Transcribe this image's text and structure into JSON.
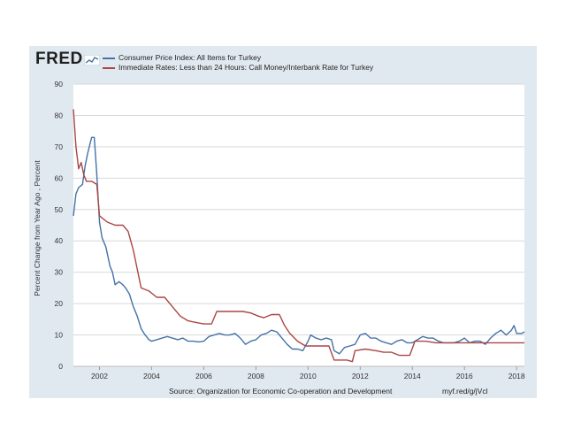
{
  "brand": {
    "logo_text": "FRED",
    "logo_icon": "fred-chart-icon"
  },
  "legend": [
    {
      "label": "Consumer Price Index: All Items for Turkey",
      "color": "#4572a7"
    },
    {
      "label": "Immediate Rates: Less than 24 Hours: Call Money/Interbank Rate for Turkey",
      "color": "#aa4643"
    }
  ],
  "footer": {
    "source": "Source: Organization for Economic Co-operation and Development",
    "url": "myf.red/g/jVcl"
  },
  "colors": {
    "panel": "#e1e9f0",
    "plot": "#ffffff",
    "grid": "#d9d9d9"
  },
  "chart_data": {
    "type": "line",
    "ylabel": "Percent Change from Year Ago , Percent",
    "xlabel": "",
    "xlim": [
      2001.0,
      2018.3
    ],
    "ylim": [
      0,
      90
    ],
    "x_ticks": [
      2002,
      2004,
      2006,
      2008,
      2010,
      2012,
      2014,
      2016,
      2018
    ],
    "y_ticks": [
      0,
      10,
      20,
      30,
      40,
      50,
      60,
      70,
      80,
      90
    ],
    "grid": "horizontal",
    "legend_position": "top-left",
    "series": [
      {
        "name": "Consumer Price Index: All Items for Turkey",
        "color": "#4572a7",
        "points": [
          [
            2001.0,
            48
          ],
          [
            2001.1,
            55
          ],
          [
            2001.2,
            57
          ],
          [
            2001.35,
            58
          ],
          [
            2001.45,
            64
          ],
          [
            2001.55,
            68
          ],
          [
            2001.7,
            73
          ],
          [
            2001.8,
            73
          ],
          [
            2001.9,
            61
          ],
          [
            2002.0,
            46
          ],
          [
            2002.1,
            41
          ],
          [
            2002.25,
            38
          ],
          [
            2002.4,
            32
          ],
          [
            2002.5,
            30
          ],
          [
            2002.6,
            26
          ],
          [
            2002.75,
            27
          ],
          [
            2002.9,
            26
          ],
          [
            2003.0,
            25
          ],
          [
            2003.15,
            23
          ],
          [
            2003.3,
            19
          ],
          [
            2003.45,
            16
          ],
          [
            2003.6,
            12
          ],
          [
            2003.75,
            10
          ],
          [
            2003.9,
            8.5
          ],
          [
            2004.0,
            8
          ],
          [
            2004.2,
            8.5
          ],
          [
            2004.4,
            9
          ],
          [
            2004.6,
            9.5
          ],
          [
            2004.8,
            9
          ],
          [
            2005.0,
            8.5
          ],
          [
            2005.2,
            9
          ],
          [
            2005.4,
            8
          ],
          [
            2005.6,
            8
          ],
          [
            2005.8,
            7.8
          ],
          [
            2006.0,
            8
          ],
          [
            2006.2,
            9.5
          ],
          [
            2006.4,
            10
          ],
          [
            2006.6,
            10.5
          ],
          [
            2006.8,
            10
          ],
          [
            2007.0,
            10
          ],
          [
            2007.2,
            10.5
          ],
          [
            2007.4,
            9
          ],
          [
            2007.6,
            7
          ],
          [
            2007.8,
            8
          ],
          [
            2008.0,
            8.5
          ],
          [
            2008.2,
            10
          ],
          [
            2008.4,
            10.5
          ],
          [
            2008.6,
            11.5
          ],
          [
            2008.8,
            11
          ],
          [
            2009.0,
            9
          ],
          [
            2009.2,
            7
          ],
          [
            2009.4,
            5.5
          ],
          [
            2009.6,
            5.5
          ],
          [
            2009.8,
            5
          ],
          [
            2010.0,
            8
          ],
          [
            2010.1,
            10
          ],
          [
            2010.3,
            9
          ],
          [
            2010.5,
            8.5
          ],
          [
            2010.7,
            9
          ],
          [
            2010.9,
            8.5
          ],
          [
            2011.0,
            5
          ],
          [
            2011.2,
            4
          ],
          [
            2011.4,
            6
          ],
          [
            2011.6,
            6.5
          ],
          [
            2011.8,
            7
          ],
          [
            2012.0,
            10
          ],
          [
            2012.2,
            10.5
          ],
          [
            2012.4,
            9
          ],
          [
            2012.6,
            9
          ],
          [
            2012.8,
            8
          ],
          [
            2013.0,
            7.5
          ],
          [
            2013.2,
            7
          ],
          [
            2013.4,
            8
          ],
          [
            2013.6,
            8.5
          ],
          [
            2013.8,
            7.5
          ],
          [
            2014.0,
            7.5
          ],
          [
            2014.2,
            8.5
          ],
          [
            2014.4,
            9.5
          ],
          [
            2014.6,
            9
          ],
          [
            2014.8,
            9
          ],
          [
            2015.0,
            8
          ],
          [
            2015.2,
            7.5
          ],
          [
            2015.4,
            7.5
          ],
          [
            2015.6,
            7.5
          ],
          [
            2015.8,
            8
          ],
          [
            2016.0,
            9
          ],
          [
            2016.2,
            7.5
          ],
          [
            2016.4,
            8
          ],
          [
            2016.6,
            8
          ],
          [
            2016.8,
            7
          ],
          [
            2017.0,
            9
          ],
          [
            2017.2,
            10.5
          ],
          [
            2017.4,
            11.5
          ],
          [
            2017.6,
            10
          ],
          [
            2017.8,
            11.5
          ],
          [
            2017.9,
            13
          ],
          [
            2018.0,
            10.5
          ],
          [
            2018.2,
            10.5
          ],
          [
            2018.3,
            11
          ]
        ]
      },
      {
        "name": "Immediate Rates: Less than 24 Hours: Call Money/Interbank Rate for Turkey",
        "color": "#aa4643",
        "points": [
          [
            2001.0,
            82
          ],
          [
            2001.1,
            70
          ],
          [
            2001.2,
            63
          ],
          [
            2001.3,
            65
          ],
          [
            2001.4,
            61
          ],
          [
            2001.5,
            59
          ],
          [
            2001.7,
            59
          ],
          [
            2001.9,
            58
          ],
          [
            2002.0,
            48
          ],
          [
            2002.3,
            46
          ],
          [
            2002.6,
            45
          ],
          [
            2002.9,
            45
          ],
          [
            2003.1,
            43
          ],
          [
            2003.3,
            37
          ],
          [
            2003.6,
            25
          ],
          [
            2003.9,
            24
          ],
          [
            2004.2,
            22
          ],
          [
            2004.5,
            22
          ],
          [
            2004.8,
            19
          ],
          [
            2005.1,
            16
          ],
          [
            2005.4,
            14.5
          ],
          [
            2005.7,
            14
          ],
          [
            2006.0,
            13.5
          ],
          [
            2006.3,
            13.5
          ],
          [
            2006.5,
            17.5
          ],
          [
            2006.8,
            17.5
          ],
          [
            2007.2,
            17.5
          ],
          [
            2007.5,
            17.5
          ],
          [
            2007.8,
            17
          ],
          [
            2008.1,
            16
          ],
          [
            2008.3,
            15.5
          ],
          [
            2008.6,
            16.5
          ],
          [
            2008.9,
            16.5
          ],
          [
            2009.1,
            13
          ],
          [
            2009.3,
            10.5
          ],
          [
            2009.6,
            8
          ],
          [
            2009.9,
            6.5
          ],
          [
            2010.2,
            6.5
          ],
          [
            2010.5,
            6.5
          ],
          [
            2010.8,
            6.5
          ],
          [
            2011.0,
            2
          ],
          [
            2011.5,
            2
          ],
          [
            2011.7,
            1.5
          ],
          [
            2011.8,
            5
          ],
          [
            2012.2,
            5.5
          ],
          [
            2012.6,
            5
          ],
          [
            2012.9,
            4.5
          ],
          [
            2013.2,
            4.5
          ],
          [
            2013.5,
            3.5
          ],
          [
            2013.9,
            3.5
          ],
          [
            2014.1,
            8
          ],
          [
            2014.5,
            8
          ],
          [
            2014.9,
            7.5
          ],
          [
            2015.3,
            7.5
          ],
          [
            2015.8,
            7.5
          ],
          [
            2016.3,
            7.5
          ],
          [
            2016.8,
            7.5
          ],
          [
            2017.3,
            7.5
          ],
          [
            2017.8,
            7.5
          ],
          [
            2018.3,
            7.5
          ]
        ]
      }
    ]
  }
}
